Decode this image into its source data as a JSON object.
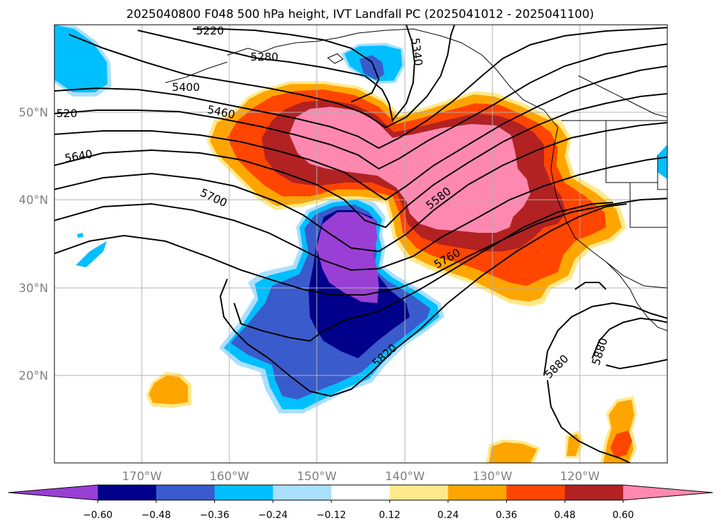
{
  "chart_data": {
    "type": "heatmap",
    "title": "2025040800 F048 500 hPa height, IVT Landfall PC (2025041012 - 2025041100)",
    "xlabel": "",
    "ylabel": "",
    "map_projection": "equirectangular",
    "lon_range": [
      -180,
      -110
    ],
    "lat_range": [
      10,
      60
    ],
    "x_ticks": [
      {
        "value": -170,
        "label": "170°W"
      },
      {
        "value": -160,
        "label": "160°W"
      },
      {
        "value": -150,
        "label": "150°W"
      },
      {
        "value": -140,
        "label": "140°W"
      },
      {
        "value": -130,
        "label": "130°W"
      },
      {
        "value": -120,
        "label": "120°W"
      }
    ],
    "y_ticks": [
      {
        "value": 20,
        "label": "20°N"
      },
      {
        "value": 30,
        "label": "30°N"
      },
      {
        "value": 40,
        "label": "40°N"
      },
      {
        "value": 50,
        "label": "50°N"
      }
    ],
    "grid": true,
    "colorbar": {
      "orientation": "horizontal",
      "placement": "bottom",
      "extend": "both",
      "levels": [
        -0.6,
        -0.48,
        -0.36,
        -0.24,
        -0.12,
        0.12,
        0.24,
        0.36,
        0.48,
        0.6
      ],
      "tick_labels": [
        "−0.60",
        "−0.48",
        "−0.36",
        "−0.24",
        "−0.12",
        "0.12",
        "0.24",
        "0.36",
        "0.48",
        "0.60"
      ],
      "colors": [
        "#9a3fd5",
        "#00008b",
        "#3a5bcc",
        "#00bfff",
        "#aadfff",
        "#ffffff",
        "#ffe98a",
        "#ffa500",
        "#ff4500",
        "#b22222",
        "#ff88b0"
      ]
    },
    "shaded_regions": [
      {
        "name": "pacific-ridge-low-pc",
        "sign": "negative",
        "peak_value": -0.66,
        "peak_lon": -146,
        "peak_lat": 37
      },
      {
        "name": "west-coast-landfall-high-pc",
        "sign": "positive",
        "peak_value": 0.66,
        "peak_lon": -139,
        "peak_lat": 47
      },
      {
        "name": "gulf-alaska-small-low",
        "sign": "negative",
        "peak_value": -0.4,
        "peak_lon": -143,
        "peak_lat": 56
      },
      {
        "name": "northwest-pacific-low",
        "sign": "negative",
        "peak_value": -0.3,
        "peak_lon": -178,
        "peak_lat": 56
      },
      {
        "name": "subtropical-small-high",
        "sign": "positive",
        "peak_value": 0.3,
        "peak_lon": -167,
        "peak_lat": 18
      },
      {
        "name": "mexico-small-high",
        "sign": "positive",
        "peak_value": 0.4,
        "peak_lon": -112,
        "peak_lat": 13
      },
      {
        "name": "baja-small-high",
        "sign": "positive",
        "peak_value": 0.3,
        "peak_lon": -130,
        "peak_lat": 11
      }
    ],
    "contour_labels": [
      "5220",
      "5280",
      "5340",
      "5400",
      "5460",
      "520",
      "5580",
      "5640",
      "5700",
      "5760",
      "5820",
      "5880",
      "5880"
    ]
  }
}
